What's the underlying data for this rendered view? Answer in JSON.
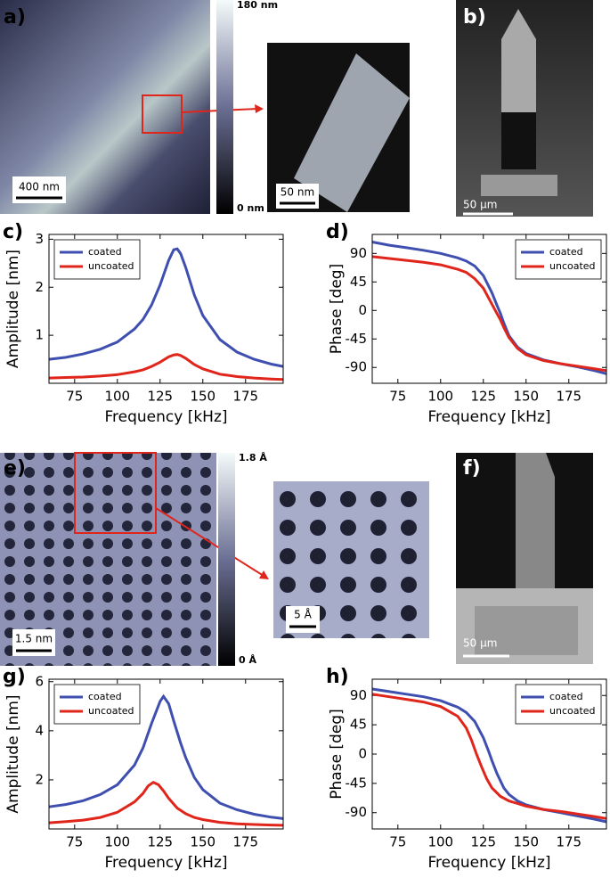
{
  "figure": {
    "panel_labels": [
      "a)",
      "b)",
      "e)",
      "f)"
    ],
    "scale_bars": [
      "400 nm",
      "50 nm",
      "50 µm",
      "1.5 nm",
      "5 Å",
      "50 µm"
    ],
    "colorbar_labels": [
      "180 nm",
      "0 nm",
      "1.8 Å",
      "0 Å"
    ]
  },
  "chart_data": [
    {
      "type": "line",
      "panel_label": "c)",
      "x_label": "Frequency [kHz]",
      "y_label": "Amplitude [nm]",
      "xlim": [
        60,
        197
      ],
      "ylim": [
        0,
        3.1
      ],
      "xticks": [
        75,
        100,
        125,
        150,
        175
      ],
      "yticks": [
        1,
        2,
        3
      ],
      "legend": "upper left",
      "series": [
        {
          "name": "coated",
          "color": "#3f4fb0",
          "x": [
            60,
            70,
            80,
            90,
            100,
            110,
            115,
            120,
            125,
            130,
            133,
            135,
            137,
            140,
            145,
            150,
            160,
            170,
            180,
            190,
            197
          ],
          "values": [
            0.5,
            0.54,
            0.61,
            0.71,
            0.86,
            1.13,
            1.33,
            1.63,
            2.05,
            2.56,
            2.78,
            2.8,
            2.7,
            2.41,
            1.84,
            1.41,
            0.91,
            0.65,
            0.5,
            0.4,
            0.35
          ]
        },
        {
          "name": "uncoated",
          "color": "#e0251b",
          "x": [
            60,
            70,
            80,
            90,
            100,
            110,
            115,
            120,
            125,
            130,
            133,
            135,
            137,
            140,
            145,
            150,
            160,
            170,
            180,
            190,
            197
          ],
          "values": [
            0.11,
            0.12,
            0.13,
            0.15,
            0.18,
            0.24,
            0.28,
            0.35,
            0.44,
            0.55,
            0.59,
            0.6,
            0.58,
            0.52,
            0.39,
            0.3,
            0.19,
            0.14,
            0.11,
            0.09,
            0.08
          ]
        }
      ]
    },
    {
      "type": "line",
      "panel_label": "d)",
      "x_label": "Frequency [kHz]",
      "y_label": "Phase [deg]",
      "xlim": [
        60,
        197
      ],
      "ylim": [
        -115,
        120
      ],
      "xticks": [
        75,
        100,
        125,
        150,
        175
      ],
      "yticks": [
        -90,
        -45,
        0,
        45,
        90
      ],
      "legend": "upper right",
      "series": [
        {
          "name": "coated",
          "color": "#3f4fb0",
          "x": [
            60,
            70,
            80,
            90,
            100,
            110,
            115,
            120,
            125,
            130,
            133,
            135,
            137,
            140,
            145,
            150,
            160,
            170,
            180,
            190,
            197
          ],
          "values": [
            108,
            103,
            99,
            95,
            90,
            83,
            78,
            70,
            55,
            28,
            8,
            -5,
            -20,
            -40,
            -58,
            -68,
            -78,
            -84,
            -89,
            -95,
            -100
          ]
        },
        {
          "name": "uncoated",
          "color": "#e0251b",
          "x": [
            60,
            70,
            80,
            90,
            100,
            110,
            115,
            120,
            125,
            130,
            133,
            135,
            137,
            140,
            145,
            150,
            160,
            170,
            180,
            190,
            197
          ],
          "values": [
            85,
            82,
            79,
            76,
            72,
            65,
            60,
            50,
            35,
            10,
            -5,
            -15,
            -27,
            -43,
            -60,
            -70,
            -79,
            -84,
            -88,
            -92,
            -95
          ]
        }
      ]
    },
    {
      "type": "line",
      "panel_label": "g)",
      "x_label": "Frequency [kHz]",
      "y_label": "Amplitude [nm]",
      "xlim": [
        60,
        197
      ],
      "ylim": [
        0,
        6.1
      ],
      "xticks": [
        75,
        100,
        125,
        150,
        175
      ],
      "yticks": [
        2,
        4,
        6
      ],
      "legend": "upper left",
      "series": [
        {
          "name": "coated",
          "color": "#3f4fb0",
          "x": [
            60,
            70,
            80,
            90,
            100,
            110,
            115,
            120,
            125,
            127,
            130,
            133,
            137,
            140,
            145,
            150,
            160,
            170,
            180,
            190,
            197
          ],
          "values": [
            0.9,
            1.0,
            1.15,
            1.4,
            1.8,
            2.6,
            3.3,
            4.3,
            5.2,
            5.4,
            5.1,
            4.4,
            3.5,
            2.9,
            2.1,
            1.6,
            1.05,
            0.78,
            0.6,
            0.48,
            0.42
          ]
        },
        {
          "name": "uncoated",
          "color": "#e0251b",
          "x": [
            60,
            70,
            80,
            90,
            100,
            110,
            115,
            118,
            121,
            124,
            127,
            130,
            135,
            140,
            145,
            150,
            160,
            170,
            180,
            190,
            197
          ],
          "values": [
            0.25,
            0.3,
            0.36,
            0.47,
            0.68,
            1.1,
            1.45,
            1.75,
            1.9,
            1.8,
            1.55,
            1.25,
            0.85,
            0.62,
            0.47,
            0.38,
            0.27,
            0.21,
            0.18,
            0.16,
            0.15
          ]
        }
      ]
    },
    {
      "type": "line",
      "panel_label": "h)",
      "x_label": "Frequency [kHz]",
      "y_label": "Phase [deg]",
      "xlim": [
        60,
        197
      ],
      "ylim": [
        -115,
        115
      ],
      "xticks": [
        75,
        100,
        125,
        150,
        175
      ],
      "yticks": [
        -90,
        -45,
        0,
        45,
        90
      ],
      "legend": "upper right",
      "series": [
        {
          "name": "coated",
          "color": "#3f4fb0",
          "x": [
            60,
            70,
            80,
            90,
            100,
            110,
            115,
            120,
            125,
            128,
            130,
            133,
            137,
            140,
            145,
            150,
            160,
            170,
            180,
            190,
            197
          ],
          "values": [
            100,
            96,
            92,
            88,
            82,
            72,
            64,
            50,
            25,
            5,
            -10,
            -30,
            -52,
            -62,
            -72,
            -78,
            -85,
            -90,
            -95,
            -100,
            -104
          ]
        },
        {
          "name": "uncoated",
          "color": "#e0251b",
          "x": [
            60,
            70,
            80,
            90,
            100,
            110,
            115,
            118,
            121,
            124,
            127,
            130,
            135,
            140,
            145,
            150,
            160,
            170,
            180,
            190,
            197
          ],
          "values": [
            92,
            88,
            84,
            80,
            73,
            58,
            40,
            22,
            0,
            -20,
            -38,
            -52,
            -65,
            -72,
            -76,
            -80,
            -85,
            -88,
            -92,
            -96,
            -99
          ]
        }
      ]
    }
  ]
}
